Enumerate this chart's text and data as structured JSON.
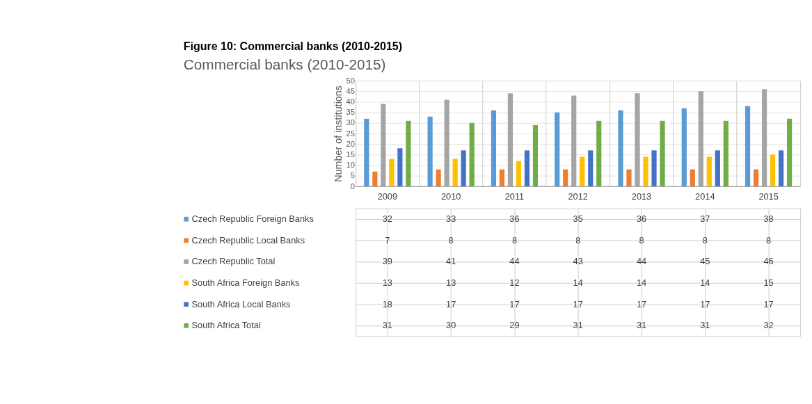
{
  "chart_data": {
    "type": "bar",
    "title": "Figure 10: Commercial banks (2010-2015)",
    "subtitle": "Commercial banks (2010-2015)",
    "ylabel": "Number of institutions",
    "categories": [
      "2009",
      "2010",
      "2011",
      "2012",
      "2013",
      "2014",
      "2015"
    ],
    "series": [
      {
        "name": "Czech Republic Foreign Banks",
        "color": "#5b9bd5",
        "values": [
          32,
          33,
          36,
          35,
          36,
          37,
          38
        ]
      },
      {
        "name": "Czech Republic Local Banks",
        "color": "#ed7d31",
        "values": [
          7,
          8,
          8,
          8,
          8,
          8,
          8
        ]
      },
      {
        "name": "Czech Republic Total",
        "color": "#a5a5a5",
        "values": [
          39,
          41,
          44,
          43,
          44,
          45,
          46
        ]
      },
      {
        "name": "South Africa Foreign Banks",
        "color": "#ffc000",
        "values": [
          13,
          13,
          12,
          14,
          14,
          14,
          15
        ]
      },
      {
        "name": "South Africa Local Banks",
        "color": "#4472c4",
        "values": [
          18,
          17,
          17,
          17,
          17,
          17,
          17
        ]
      },
      {
        "name": "South Africa Total",
        "color": "#70ad47",
        "values": [
          31,
          30,
          29,
          31,
          31,
          31,
          32
        ]
      }
    ],
    "ylim": [
      0,
      50
    ],
    "yticks": [
      0,
      5,
      10,
      15,
      20,
      25,
      30,
      35,
      40,
      45,
      50
    ],
    "grid": "y",
    "legend": "bottom",
    "data_labels": true
  }
}
